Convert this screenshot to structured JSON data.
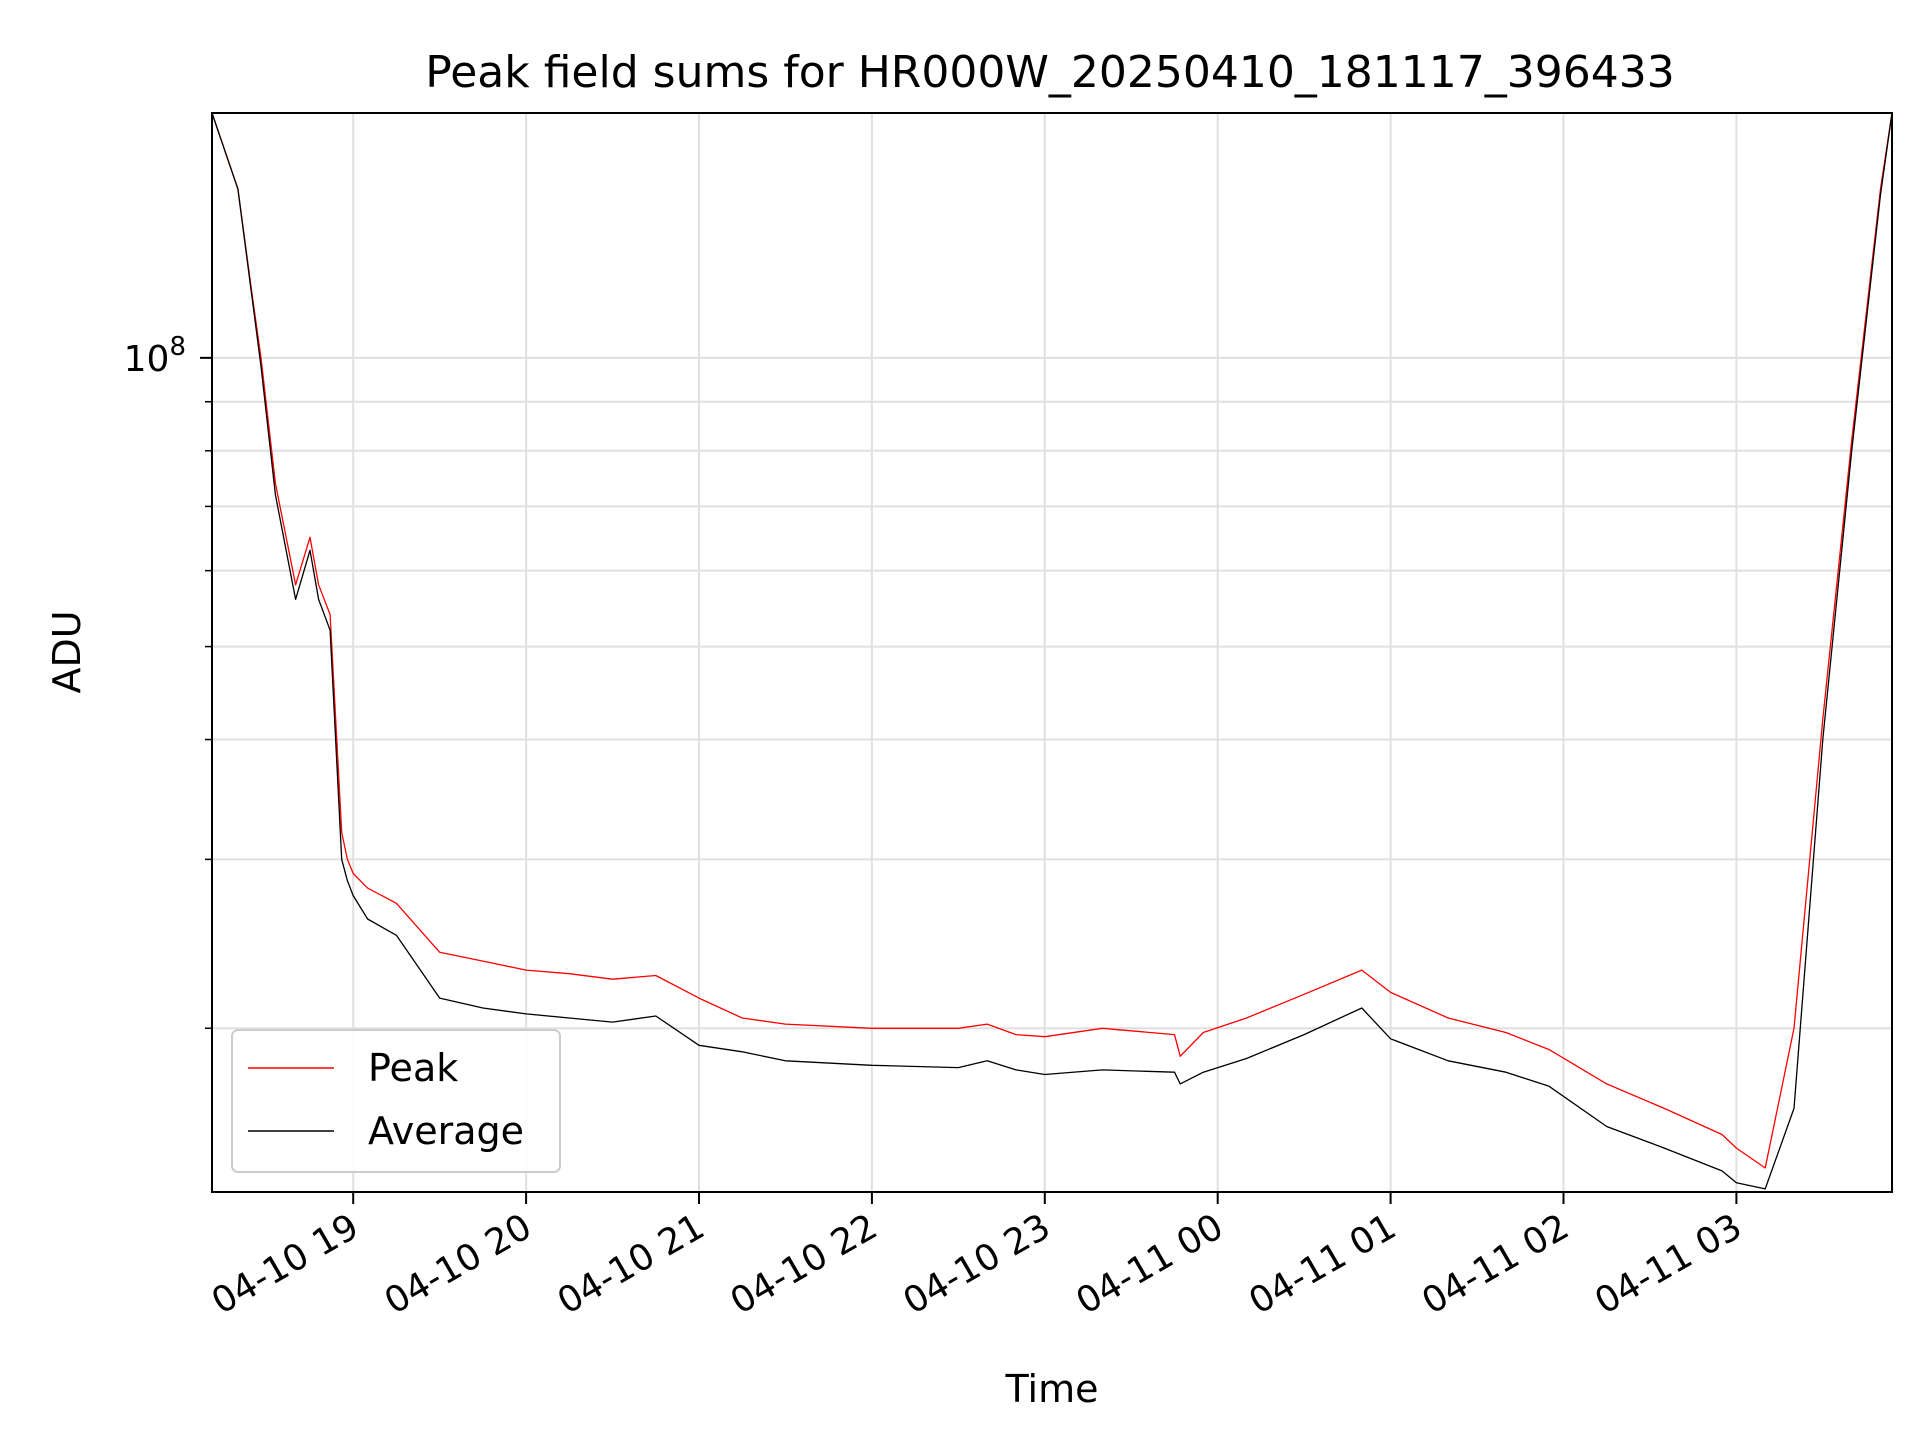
{
  "chart_data": {
    "type": "line",
    "title": "Peak field sums for HR000W_20250410_181117_396433",
    "xlabel": "Time",
    "ylabel": "ADU",
    "x_ticks": [
      "04-10 19",
      "04-10 20",
      "04-10 21",
      "04-10 22",
      "04-10 23",
      "04-11 00",
      "04-11 01",
      "04-11 02",
      "04-11 03"
    ],
    "y_tick_label": {
      "base": "10",
      "exponent": "8"
    },
    "y_scale": "log",
    "ylim": [
      13500000,
      180000000
    ],
    "xlim": [
      "2025-04-10 18:11",
      "2025-04-11 03:54"
    ],
    "grid": true,
    "legend": {
      "placement": "lower-left",
      "entries": [
        "Peak",
        "Average"
      ]
    },
    "colors": {
      "Peak": "#ff0000",
      "Average": "#000000"
    },
    "series": [
      {
        "name": "Peak",
        "x": [
          "2025-04-10 18:11",
          "2025-04-10 18:20",
          "2025-04-10 18:25",
          "2025-04-10 18:28",
          "2025-04-10 18:33",
          "2025-04-10 18:40",
          "2025-04-10 18:45",
          "2025-04-10 18:48",
          "2025-04-10 18:52",
          "2025-04-10 18:56",
          "2025-04-10 18:58",
          "2025-04-10 19:00",
          "2025-04-10 19:05",
          "2025-04-10 19:15",
          "2025-04-10 19:30",
          "2025-04-10 19:45",
          "2025-04-10 20:00",
          "2025-04-10 20:15",
          "2025-04-10 20:30",
          "2025-04-10 20:45",
          "2025-04-10 21:00",
          "2025-04-10 21:15",
          "2025-04-10 21:30",
          "2025-04-10 22:00",
          "2025-04-10 22:30",
          "2025-04-10 22:40",
          "2025-04-10 22:50",
          "2025-04-10 23:00",
          "2025-04-10 23:20",
          "2025-04-10 23:45",
          "2025-04-10 23:47",
          "2025-04-10 23:55",
          "2025-04-11 00:10",
          "2025-04-11 00:30",
          "2025-04-11 00:50",
          "2025-04-11 01:00",
          "2025-04-11 01:20",
          "2025-04-11 01:40",
          "2025-04-11 01:55",
          "2025-04-11 02:15",
          "2025-04-11 02:35",
          "2025-04-11 02:55",
          "2025-04-11 03:00",
          "2025-04-11 03:10",
          "2025-04-11 03:20",
          "2025-04-11 03:30",
          "2025-04-11 03:40",
          "2025-04-11 03:50",
          "2025-04-11 03:54"
        ],
        "y": [
          180000000,
          150000000,
          116000000,
          100000000,
          74000000,
          58000000,
          65000000,
          58000000,
          54000000,
          32000000,
          30000000,
          29000000,
          28000000,
          27000000,
          24000000,
          23500000,
          23000000,
          22800000,
          22500000,
          22700000,
          21500000,
          20500000,
          20200000,
          20000000,
          20000000,
          20200000,
          19700000,
          19600000,
          20000000,
          19700000,
          18700000,
          19800000,
          20500000,
          21700000,
          23000000,
          21800000,
          20500000,
          19800000,
          19000000,
          17500000,
          16500000,
          15500000,
          15000000,
          14300000,
          20000000,
          42000000,
          82000000,
          150000000,
          180000000
        ]
      },
      {
        "name": "Average",
        "x": [
          "2025-04-10 18:11",
          "2025-04-10 18:20",
          "2025-04-10 18:25",
          "2025-04-10 18:28",
          "2025-04-10 18:33",
          "2025-04-10 18:40",
          "2025-04-10 18:45",
          "2025-04-10 18:48",
          "2025-04-10 18:52",
          "2025-04-10 18:56",
          "2025-04-10 18:58",
          "2025-04-10 19:00",
          "2025-04-10 19:05",
          "2025-04-10 19:15",
          "2025-04-10 19:30",
          "2025-04-10 19:45",
          "2025-04-10 20:00",
          "2025-04-10 20:15",
          "2025-04-10 20:30",
          "2025-04-10 20:45",
          "2025-04-10 21:00",
          "2025-04-10 21:15",
          "2025-04-10 21:30",
          "2025-04-10 22:00",
          "2025-04-10 22:30",
          "2025-04-10 22:40",
          "2025-04-10 22:50",
          "2025-04-10 23:00",
          "2025-04-10 23:20",
          "2025-04-10 23:45",
          "2025-04-10 23:47",
          "2025-04-10 23:55",
          "2025-04-11 00:10",
          "2025-04-11 00:30",
          "2025-04-11 00:50",
          "2025-04-11 01:00",
          "2025-04-11 01:20",
          "2025-04-11 01:40",
          "2025-04-11 01:55",
          "2025-04-11 02:15",
          "2025-04-11 02:35",
          "2025-04-11 02:55",
          "2025-04-11 03:00",
          "2025-04-11 03:10",
          "2025-04-11 03:20",
          "2025-04-11 03:30",
          "2025-04-11 03:40",
          "2025-04-11 03:50",
          "2025-04-11 03:54"
        ],
        "y": [
          180000000,
          150000000,
          115000000,
          98000000,
          72000000,
          56000000,
          63000000,
          56000000,
          52000000,
          30000000,
          28500000,
          27500000,
          26000000,
          25000000,
          21500000,
          21000000,
          20700000,
          20500000,
          20300000,
          20600000,
          19200000,
          18900000,
          18500000,
          18300000,
          18200000,
          18500000,
          18100000,
          17900000,
          18100000,
          18000000,
          17500000,
          18000000,
          18600000,
          19700000,
          21000000,
          19500000,
          18500000,
          18000000,
          17400000,
          15800000,
          15000000,
          14200000,
          13800000,
          13600000,
          16500000,
          40000000,
          80000000,
          148000000,
          180000000
        ]
      }
    ]
  }
}
